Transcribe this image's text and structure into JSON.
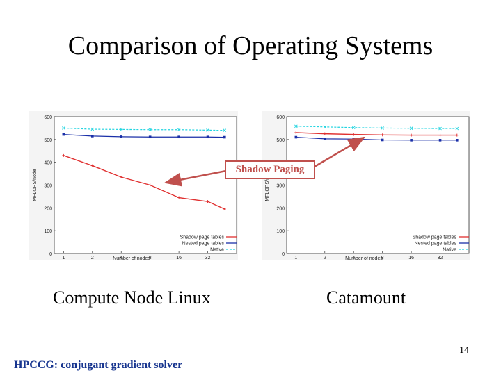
{
  "title": "Comparison of Operating Systems",
  "annotation": "Shadow Paging",
  "captions": {
    "left": "Compute Node Linux",
    "right": "Catamount"
  },
  "page_number": "14",
  "footer": "HPCCG: conjugant gradient solver",
  "colors": {
    "shadow": "#e03030",
    "nested": "#1a2fa8",
    "native": "#22d4e0",
    "annotation": "#c0504d",
    "footer": "#17358f"
  },
  "chart_data": [
    {
      "type": "line",
      "xlabel": "Number of nodes",
      "ylabel": "MFLOPS/node",
      "categories": [
        "1",
        "2",
        "4",
        "8",
        "16",
        "32"
      ],
      "x": [
        1,
        2,
        4,
        8,
        16,
        32,
        48
      ],
      "ylim": [
        0,
        600
      ],
      "yticks": [
        "0",
        "100",
        "200",
        "300",
        "400",
        "500",
        "600"
      ],
      "legend_position": "bottom-right",
      "series": [
        {
          "name": "Shadow page tables",
          "values": [
            430,
            385,
            335,
            300,
            245,
            228,
            195
          ]
        },
        {
          "name": "Nested page tables",
          "values": [
            522,
            515,
            512,
            511,
            511,
            511,
            510
          ]
        },
        {
          "name": "Native",
          "values": [
            550,
            545,
            544,
            543,
            543,
            541,
            540
          ]
        }
      ]
    },
    {
      "type": "line",
      "xlabel": "Number of nodes",
      "ylabel": "MFLOPS/node",
      "categories": [
        "1",
        "2",
        "4",
        "8",
        "16",
        "32"
      ],
      "x": [
        1,
        2,
        4,
        8,
        16,
        32,
        48
      ],
      "ylim": [
        0,
        600
      ],
      "yticks": [
        "0",
        "100",
        "200",
        "300",
        "400",
        "500",
        "600"
      ],
      "legend_position": "bottom-right",
      "series": [
        {
          "name": "Shadow page tables",
          "values": [
            530,
            525,
            522,
            520,
            519,
            519,
            519
          ]
        },
        {
          "name": "Nested page tables",
          "values": [
            510,
            503,
            502,
            498,
            497,
            497,
            497
          ]
        },
        {
          "name": "Native",
          "values": [
            558,
            555,
            552,
            550,
            549,
            548,
            548
          ]
        }
      ]
    }
  ]
}
